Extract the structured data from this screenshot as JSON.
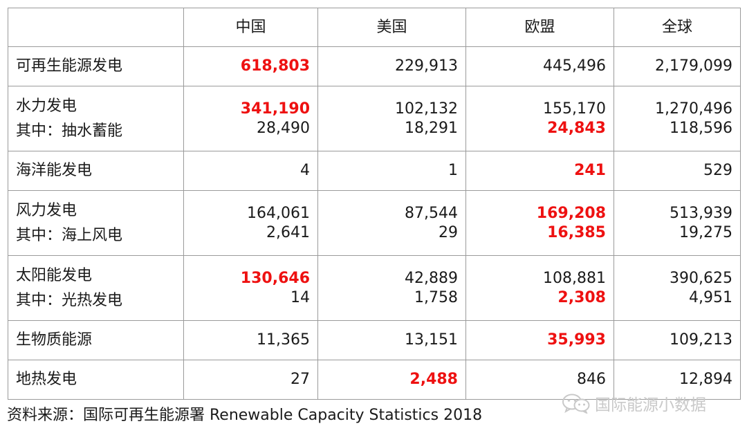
{
  "chart_data": {
    "type": "table",
    "columns": [
      "",
      "中国",
      "美国",
      "欧盟",
      "全球"
    ],
    "rows": [
      {
        "label": "可再生能源发电",
        "values": [
          [
            {
              "text": "618,803",
              "hi": true
            }
          ],
          [
            {
              "text": "229,913",
              "hi": false
            }
          ],
          [
            {
              "text": "445,496",
              "hi": false
            }
          ],
          [
            {
              "text": "2,179,099",
              "hi": false
            }
          ]
        ]
      },
      {
        "label": "水力发电",
        "sublabel": "其中：抽水蓄能",
        "values": [
          [
            {
              "text": "341,190",
              "hi": true
            },
            {
              "text": "28,490",
              "hi": false
            }
          ],
          [
            {
              "text": "102,132",
              "hi": false
            },
            {
              "text": "18,291",
              "hi": false
            }
          ],
          [
            {
              "text": "155,170",
              "hi": false
            },
            {
              "text": "24,843",
              "hi": true
            }
          ],
          [
            {
              "text": "1,270,496",
              "hi": false
            },
            {
              "text": "118,596",
              "hi": false
            }
          ]
        ]
      },
      {
        "label": "海洋能发电",
        "values": [
          [
            {
              "text": "4",
              "hi": false
            }
          ],
          [
            {
              "text": "1",
              "hi": false
            }
          ],
          [
            {
              "text": "241",
              "hi": true
            }
          ],
          [
            {
              "text": "529",
              "hi": false
            }
          ]
        ]
      },
      {
        "label": "风力发电",
        "sublabel": "其中：海上风电",
        "values": [
          [
            {
              "text": "164,061",
              "hi": false
            },
            {
              "text": "2,641",
              "hi": false
            }
          ],
          [
            {
              "text": "87,544",
              "hi": false
            },
            {
              "text": "29",
              "hi": false
            }
          ],
          [
            {
              "text": "169,208",
              "hi": true
            },
            {
              "text": "16,385",
              "hi": true
            }
          ],
          [
            {
              "text": "513,939",
              "hi": false
            },
            {
              "text": "19,275",
              "hi": false
            }
          ]
        ]
      },
      {
        "label": "太阳能发电",
        "sublabel": "其中：光热发电",
        "values": [
          [
            {
              "text": "130,646",
              "hi": true
            },
            {
              "text": "14",
              "hi": false
            }
          ],
          [
            {
              "text": "42,889",
              "hi": false
            },
            {
              "text": "1,758",
              "hi": false
            }
          ],
          [
            {
              "text": "108,881",
              "hi": false
            },
            {
              "text": "2,308",
              "hi": true
            }
          ],
          [
            {
              "text": "390,625",
              "hi": false
            },
            {
              "text": "4,951",
              "hi": false
            }
          ]
        ]
      },
      {
        "label": "生物质能源",
        "values": [
          [
            {
              "text": "11,365",
              "hi": false
            }
          ],
          [
            {
              "text": "13,151",
              "hi": false
            }
          ],
          [
            {
              "text": "35,993",
              "hi": true
            }
          ],
          [
            {
              "text": "109,213",
              "hi": false
            }
          ]
        ]
      },
      {
        "label": "地热发电",
        "values": [
          [
            {
              "text": "27",
              "hi": false
            }
          ],
          [
            {
              "text": "2,488",
              "hi": true
            }
          ],
          [
            {
              "text": "846",
              "hi": false
            }
          ],
          [
            {
              "text": "12,894",
              "hi": false
            }
          ]
        ]
      }
    ]
  },
  "footer": {
    "source": "资料来源：国际可再生能源署 Renewable Capacity Statistics 2018"
  },
  "watermark": {
    "text": "国际能源小数据",
    "icon": "wechat-icon"
  },
  "colors": {
    "highlight": "#ee1111",
    "text": "#1a1a1a",
    "border": "#9a9a9a",
    "watermark": "#c9c9c9"
  }
}
